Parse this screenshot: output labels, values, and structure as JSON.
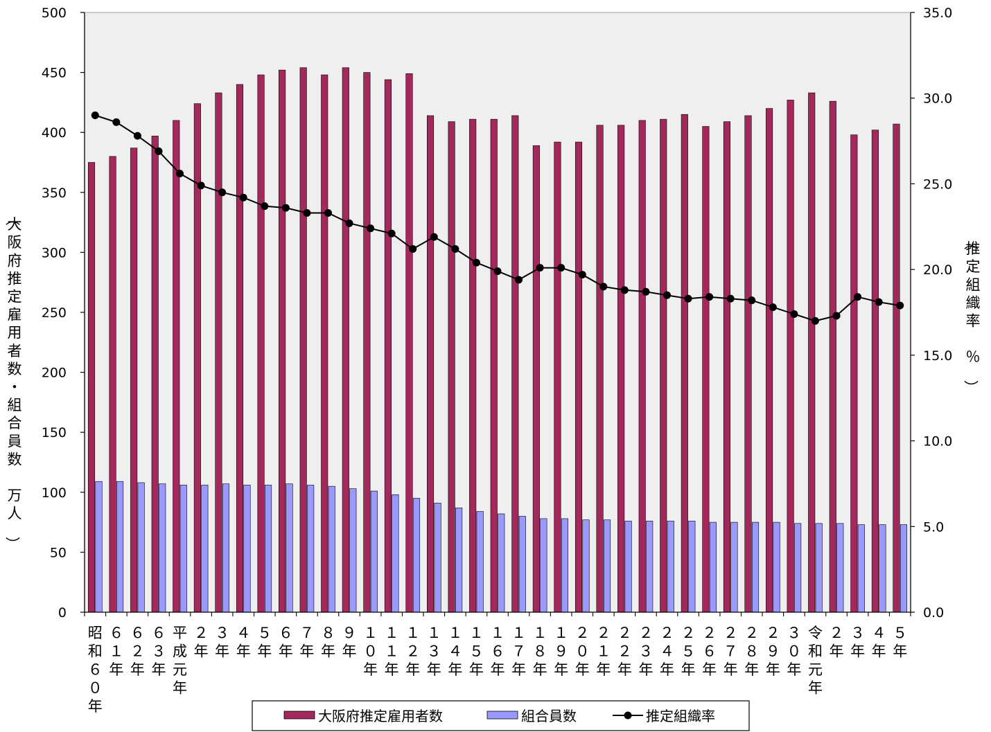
{
  "chart_data": {
    "type": "bar",
    "categories": [
      "昭和60年",
      "61年",
      "62年",
      "63年",
      "平成元年",
      "2年",
      "3年",
      "4年",
      "5年",
      "6年",
      "7年",
      "8年",
      "9年",
      "10年",
      "11年",
      "12年",
      "13年",
      "14年",
      "15年",
      "16年",
      "17年",
      "18年",
      "19年",
      "20年",
      "21年",
      "22年",
      "23年",
      "24年",
      "25年",
      "26年",
      "27年",
      "28年",
      "29年",
      "30年",
      "令和元年",
      "2年",
      "3年",
      "4年",
      "5年"
    ],
    "series": [
      {
        "name": "大阪府推定雇用者数",
        "axis": "left",
        "values": [
          375,
          380,
          387,
          397,
          410,
          424,
          433,
          440,
          448,
          452,
          454,
          448,
          454,
          450,
          444,
          449,
          414,
          409,
          411,
          411,
          414,
          389,
          392,
          392,
          406,
          406,
          410,
          411,
          415,
          405,
          409,
          414,
          420,
          427,
          433,
          426,
          398,
          402,
          407
        ]
      },
      {
        "name": "組合員数",
        "axis": "left",
        "values": [
          109,
          109,
          108,
          107,
          106,
          106,
          107,
          106,
          106,
          107,
          106,
          105,
          103,
          101,
          98,
          95,
          91,
          87,
          84,
          82,
          80,
          78,
          78,
          77,
          77,
          76,
          76,
          76,
          76,
          75,
          75,
          75,
          75,
          74,
          74,
          74,
          73,
          73,
          73
        ]
      },
      {
        "name": "推定組織率",
        "type": "line",
        "axis": "right",
        "values": [
          29.0,
          28.6,
          27.8,
          26.9,
          25.6,
          24.9,
          24.5,
          24.2,
          23.7,
          23.6,
          23.3,
          23.3,
          22.7,
          22.4,
          22.1,
          21.2,
          21.9,
          21.2,
          20.4,
          19.9,
          19.4,
          20.1,
          20.1,
          19.7,
          19.0,
          18.8,
          18.7,
          18.5,
          18.3,
          18.4,
          18.3,
          18.2,
          17.8,
          17.4,
          17.0,
          17.3,
          18.4,
          18.1,
          17.9
        ]
      }
    ],
    "ylabel": "（大阪府推定雇用者数・組合員数　万人）",
    "y2label": "（推定組織率　％）",
    "ylim": [
      0,
      500
    ],
    "y2lim": [
      0,
      35
    ],
    "yticks": [
      "0",
      "50",
      "100",
      "150",
      "200",
      "250",
      "300",
      "350",
      "400",
      "450",
      "500"
    ],
    "y2ticks": [
      "0.0",
      "5.0",
      "10.0",
      "15.0",
      "20.0",
      "25.0",
      "30.0",
      "35.0"
    ],
    "grid": false,
    "legend": "bottom-center",
    "colors": {
      "employees": "#a3295c",
      "members": "#9999ff",
      "rate": "#000000",
      "plot_bg": "#efefef"
    }
  }
}
